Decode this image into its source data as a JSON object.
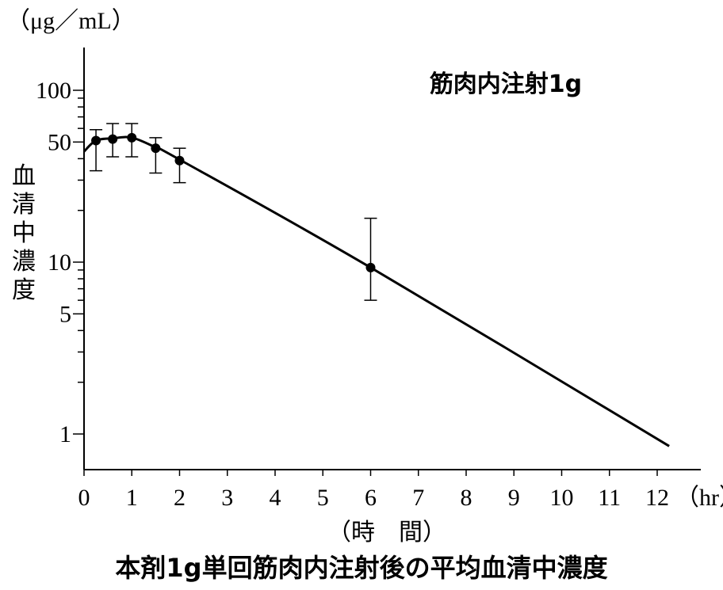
{
  "chart_data": {
    "type": "line",
    "title": "筋肉内注射1g",
    "caption": "本剤1g単回筋肉内注射後の平均血清中濃度",
    "xlabel": "（時　間）",
    "x_unit": "（hr）",
    "ylabel": "血清中濃度",
    "y_unit": "（μg／mL）",
    "y_scale": "log",
    "xlim": [
      0,
      12.9
    ],
    "ylim": [
      0.55,
      170
    ],
    "x_ticks": [
      0,
      1,
      2,
      3,
      4,
      5,
      6,
      7,
      8,
      9,
      10,
      11,
      12
    ],
    "x_tick_labels": [
      "0",
      "1",
      "2",
      "3",
      "4",
      "5",
      "6",
      "7",
      "8",
      "9",
      "10",
      "11",
      "12"
    ],
    "y_tick_labels": [
      {
        "value": 1,
        "label": "1"
      },
      {
        "value": 5,
        "label": "5"
      },
      {
        "value": 10,
        "label": "10"
      },
      {
        "value": 50,
        "label": "50"
      },
      {
        "value": 100,
        "label": "100"
      }
    ],
    "y_minor_ticks": [
      2,
      3,
      4,
      6,
      7,
      8,
      9,
      20,
      30,
      40,
      60,
      70,
      80,
      90
    ],
    "grid": false,
    "series": [
      {
        "points": [
          {
            "x": 0.25,
            "y": 51,
            "err_low": 34,
            "err_high": 59
          },
          {
            "x": 0.6,
            "y": 52,
            "err_low": 41,
            "err_high": 64
          },
          {
            "x": 1.0,
            "y": 53,
            "err_low": 41,
            "err_high": 64
          },
          {
            "x": 1.5,
            "y": 46,
            "err_low": 33,
            "err_high": 53
          },
          {
            "x": 2.0,
            "y": 39,
            "err_low": 29,
            "err_high": 46
          },
          {
            "x": 6.0,
            "y": 9.3,
            "err_low": 6.0,
            "err_high": 18
          }
        ],
        "fit_curve": [
          [
            0,
            44
          ],
          [
            0.25,
            51
          ],
          [
            0.6,
            52.5
          ],
          [
            1.0,
            53
          ],
          [
            1.5,
            46.5
          ],
          [
            2.0,
            39.5
          ],
          [
            6.0,
            9.3
          ],
          [
            12.25,
            0.85
          ]
        ]
      }
    ],
    "colors": {
      "line": "#000000",
      "background": "#ffffff"
    }
  }
}
